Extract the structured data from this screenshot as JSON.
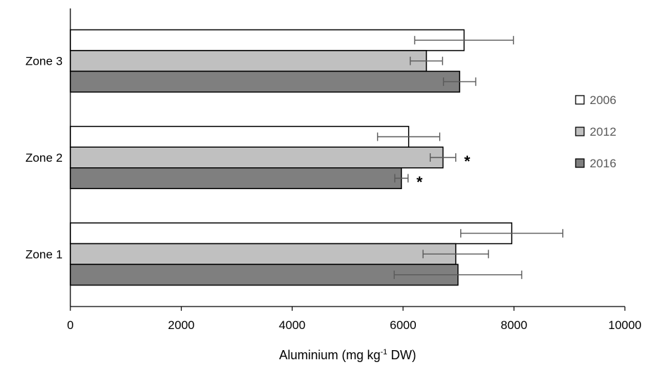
{
  "chart_data": {
    "type": "bar",
    "orientation": "horizontal",
    "categories": [
      "Zone 1",
      "Zone 2",
      "Zone 3"
    ],
    "series": [
      {
        "name": "2006",
        "color": "#ffffff",
        "values": [
          7960,
          6100,
          7100
        ],
        "errors": [
          920,
          560,
          890
        ]
      },
      {
        "name": "2012",
        "color": "#c0c0c0",
        "values": [
          6950,
          6720,
          6420
        ],
        "errors": [
          590,
          230,
          290
        ]
      },
      {
        "name": "2016",
        "color": "#7f7f7f",
        "values": [
          6990,
          5970,
          7020
        ],
        "errors": [
          1150,
          120,
          290
        ]
      }
    ],
    "xlim": [
      0,
      10000
    ],
    "xticks": [
      "0",
      "2000",
      "4000",
      "6000",
      "8000",
      "10000"
    ],
    "xlabel": {
      "main": "Aluminium (mg kg",
      "sup": "-1",
      "tail": " DW)"
    },
    "ylabel": "",
    "title": "",
    "grid": false,
    "legend_position": "right",
    "annotations": [
      {
        "category": "Zone 2",
        "series": "2012",
        "text": "*"
      },
      {
        "category": "Zone 2",
        "series": "2016",
        "text": "*"
      }
    ]
  }
}
